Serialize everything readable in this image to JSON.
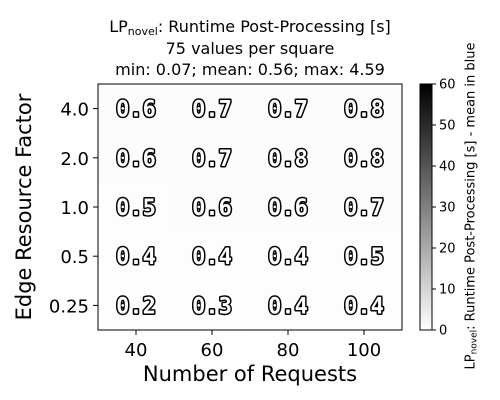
{
  "chart_data": {
    "type": "heatmap",
    "title": {
      "prefix": "LP",
      "subscript": "novel",
      "suffix": ": Runtime Post-Processing [s]",
      "line2": "75 values per square",
      "line3": "min: 0.07; mean: 0.56; max: 4.59"
    },
    "xlabel": "Number of Requests",
    "ylabel": "Edge Resource Factor",
    "x_categories": [
      "40",
      "60",
      "80",
      "100"
    ],
    "y_categories": [
      "0.25",
      "0.5",
      "1.0",
      "2.0",
      "4.0"
    ],
    "cells": [
      [
        0.2,
        0.3,
        0.4,
        0.4
      ],
      [
        0.4,
        0.4,
        0.4,
        0.5
      ],
      [
        0.5,
        0.6,
        0.6,
        0.7
      ],
      [
        0.6,
        0.7,
        0.8,
        0.8
      ],
      [
        0.6,
        0.7,
        0.7,
        0.8
      ]
    ],
    "colorbar": {
      "label_prefix": "LP",
      "label_subscript": "novel",
      "label_suffix": ": Runtime Post-Processing [s] - mean in blue",
      "range": [
        0,
        60
      ],
      "ticks": [
        "0",
        "10",
        "20",
        "30",
        "40",
        "50",
        "60"
      ],
      "colormap": "greys"
    }
  }
}
